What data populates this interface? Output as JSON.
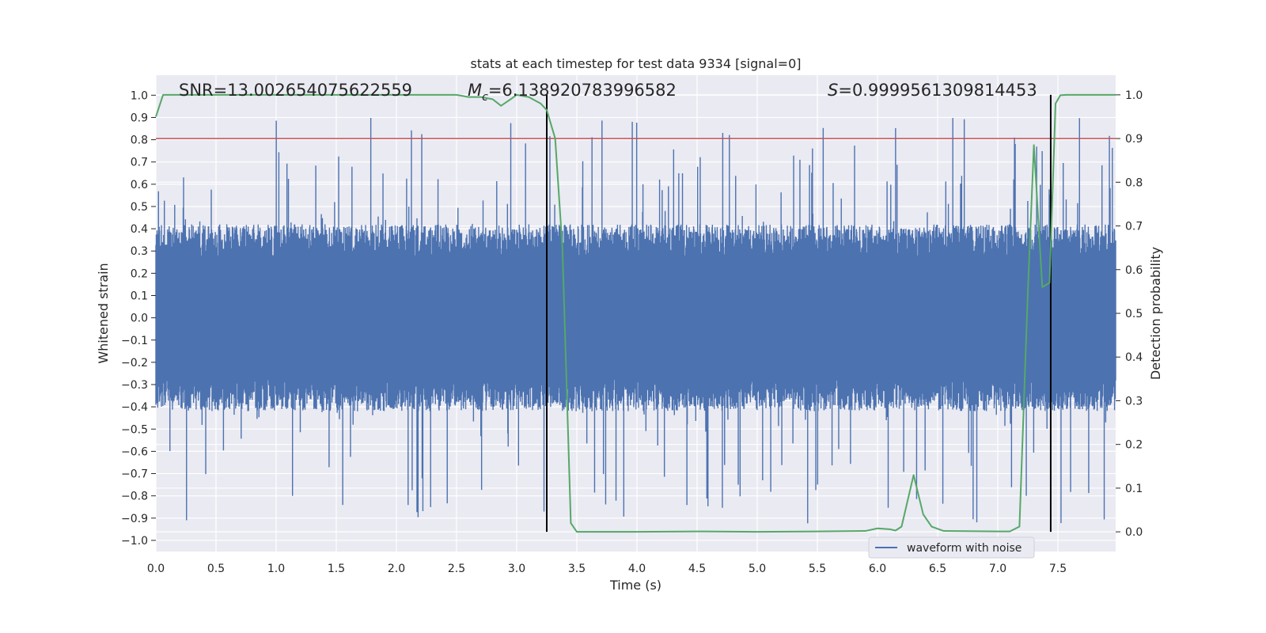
{
  "chart_data": {
    "type": "line",
    "title": "stats at each timestep for test data 9334 [signal=0]",
    "xlabel": "Time (s)",
    "ylabel": "Whitened strain",
    "y2label": "Detection probability",
    "xlim": [
      0,
      7.98
    ],
    "ylim": [
      -1.05,
      1.09
    ],
    "y2lim": [
      -0.045,
      1.045
    ],
    "x_ticks": [
      "0.0",
      "0.5",
      "1.0",
      "1.5",
      "2.0",
      "2.5",
      "3.0",
      "3.5",
      "4.0",
      "4.5",
      "5.0",
      "5.5",
      "6.0",
      "6.5",
      "7.0",
      "7.5"
    ],
    "y_ticks": [
      "1.0",
      "0.9",
      "0.8",
      "0.7",
      "0.6",
      "0.5",
      "0.4",
      "0.3",
      "0.2",
      "0.1",
      "0.0",
      "−0.1",
      "−0.2",
      "−0.3",
      "−0.4",
      "−0.5",
      "−0.6",
      "−0.7",
      "−0.8",
      "−0.9",
      "−1.0"
    ],
    "y2_ticks": [
      "1.0",
      "0.9",
      "0.8",
      "0.7",
      "0.6",
      "0.5",
      "0.4",
      "0.3",
      "0.2",
      "0.1",
      "0.0"
    ],
    "grid": true,
    "legend": {
      "position": "bottom-right",
      "entries": [
        "waveform with noise"
      ]
    },
    "annotations": {
      "snr": "SNR=13.002654075622559",
      "mc_symbol": "M",
      "mc_sub": "c",
      "mc_value": "=6.138920783996582",
      "s_symbol": "S",
      "s_value": "=0.9999561309814453"
    },
    "threshold_line": {
      "value": 0.9,
      "axis": "right"
    },
    "vertical_lines": [
      3.25,
      7.44
    ],
    "series": [
      {
        "name": "waveform with noise",
        "kind": "noise",
        "x_range": [
          0,
          7.98
        ],
        "envelope_abs": 0.35,
        "peak_max": 0.9,
        "peak_min": -0.93
      },
      {
        "kind": "probability",
        "axis": "right",
        "x": [
          0,
          0.06,
          0.5,
          1.0,
          1.5,
          2.0,
          2.5,
          2.6,
          2.7,
          2.8,
          2.87,
          2.95,
          3.0,
          3.1,
          3.2,
          3.25,
          3.32,
          3.38,
          3.45,
          3.5,
          4.0,
          4.5,
          5.0,
          5.5,
          5.9,
          6.0,
          6.1,
          6.15,
          6.2,
          6.3,
          6.38,
          6.45,
          6.55,
          7.0,
          7.1,
          7.18,
          7.25,
          7.3,
          7.37,
          7.43,
          7.48,
          7.52,
          7.57,
          7.98
        ],
        "y": [
          0.95,
          1.0,
          1.0,
          1.0,
          1.0,
          1.0,
          1.0,
          0.995,
          0.995,
          0.99,
          0.975,
          0.99,
          1.0,
          0.995,
          0.98,
          0.965,
          0.9,
          0.65,
          0.02,
          0.0,
          0.0,
          0.001,
          0.0,
          0.001,
          0.002,
          0.008,
          0.006,
          0.003,
          0.012,
          0.13,
          0.04,
          0.012,
          0.002,
          0.001,
          0.001,
          0.012,
          0.55,
          0.885,
          0.56,
          0.57,
          0.98,
          0.999,
          1.0,
          1.0
        ]
      }
    ],
    "colors": {
      "noise": "#4c72b0",
      "probability": "#55a868",
      "threshold": "#c44e52",
      "vline": "#000000",
      "plot_bg": "#eaeaf2",
      "grid": "#ffffff"
    }
  }
}
